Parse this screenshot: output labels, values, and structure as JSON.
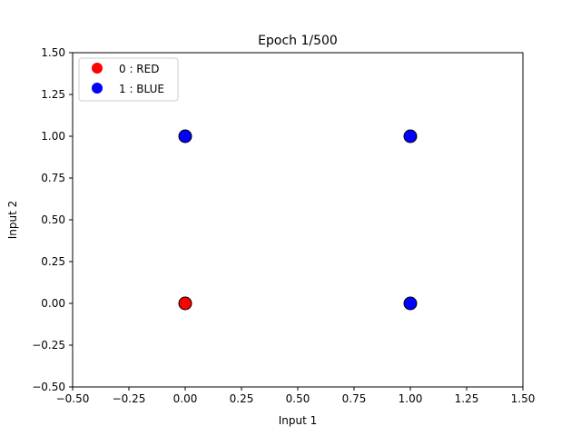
{
  "chart_data": {
    "type": "scatter",
    "title": "Epoch 1/500",
    "xlabel": "Input 1",
    "ylabel": "Input 2",
    "xlim": [
      -0.5,
      1.5
    ],
    "ylim": [
      -0.5,
      1.5
    ],
    "xticks": [
      -0.5,
      -0.25,
      0.0,
      0.25,
      0.5,
      0.75,
      1.0,
      1.25,
      1.5
    ],
    "yticks": [
      -0.5,
      -0.25,
      0.0,
      0.25,
      0.5,
      0.75,
      1.0,
      1.25,
      1.5
    ],
    "xtick_labels": [
      "−0.50",
      "−0.25",
      "0.00",
      "0.25",
      "0.50",
      "0.75",
      "1.00",
      "1.25",
      "1.50"
    ],
    "ytick_labels": [
      "−0.50",
      "−0.25",
      "0.00",
      "0.25",
      "0.50",
      "0.75",
      "1.00",
      "1.25",
      "1.50"
    ],
    "grid": false,
    "legend_position": "top-left",
    "legend": [
      {
        "label": "0 : RED",
        "color": "#ff0000"
      },
      {
        "label": "1 : BLUE",
        "color": "#0000ff"
      }
    ],
    "points": [
      {
        "x": 0,
        "y": 0,
        "class": 0,
        "color": "#ff0000"
      },
      {
        "x": 0,
        "y": 1,
        "class": 1,
        "color": "#0000ff"
      },
      {
        "x": 1,
        "y": 0,
        "class": 1,
        "color": "#0000ff"
      },
      {
        "x": 1,
        "y": 1,
        "class": 1,
        "color": "#0000ff"
      }
    ],
    "marker_edge_color": "#000000"
  }
}
